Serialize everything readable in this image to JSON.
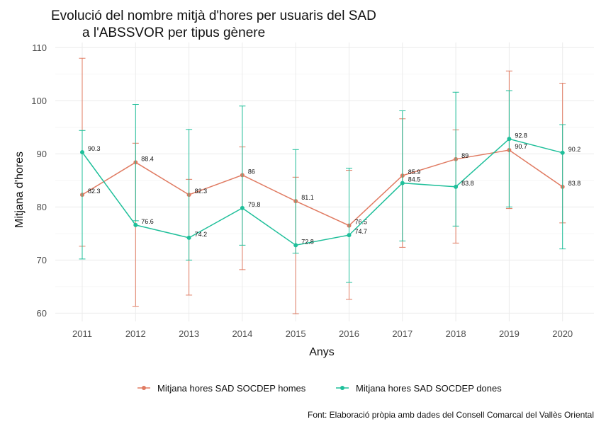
{
  "chart_data": {
    "type": "line",
    "title_lines": [
      "Evolució del nombre mitjà d'hores per usuaris del SAD",
      "a l'ABSSVOR per tipus gènere"
    ],
    "xlabel": "Anys",
    "ylabel": "Mitjana d'hores",
    "x": [
      2011,
      2012,
      2013,
      2014,
      2015,
      2016,
      2017,
      2018,
      2019,
      2020
    ],
    "ylim": [
      58,
      111
    ],
    "y_ticks": [
      60,
      70,
      80,
      90,
      100,
      110
    ],
    "grid": true,
    "legend_position": "bottom",
    "caption": "Font: Elaboració pròpia amb dades del Consell Comarcal del Vallès Oriental",
    "series": [
      {
        "name": "Mitjana hores SAD SOCDEP homes",
        "color": "#e07b62",
        "values": [
          82.3,
          88.4,
          82.3,
          86,
          81.1,
          76.5,
          85.9,
          89,
          90.7,
          83.8
        ],
        "labels": [
          "82.3",
          "88.4",
          "82.3",
          "86",
          "81.1",
          "76.5",
          "85.9",
          "89",
          "90.7",
          "83.8"
        ],
        "error_low": [
          72.6,
          61.3,
          63.4,
          68.2,
          59.9,
          62.6,
          72.4,
          73.2,
          79.7,
          77.0
        ],
        "error_high": [
          108.0,
          92.0,
          85.2,
          91.3,
          85.6,
          86.9,
          96.6,
          94.5,
          105.6,
          103.3
        ]
      },
      {
        "name": "Mitjana hores SAD SOCDEP dones",
        "color": "#1fbf9a",
        "values": [
          90.3,
          76.6,
          74.2,
          79.8,
          72.8,
          74.7,
          84.5,
          83.8,
          92.8,
          90.2
        ],
        "labels": [
          "90.3",
          "76.6",
          "74.2",
          "79.8",
          "72.8",
          "74.7",
          "84.5",
          "83.8",
          "92.8",
          "90.2"
        ],
        "error_low": [
          70.2,
          77.4,
          70.0,
          72.8,
          71.3,
          65.8,
          73.6,
          76.4,
          80.0,
          72.1
        ],
        "error_high": [
          94.4,
          99.3,
          94.6,
          99.0,
          90.8,
          87.3,
          98.1,
          101.6,
          101.9,
          95.5
        ]
      }
    ]
  }
}
